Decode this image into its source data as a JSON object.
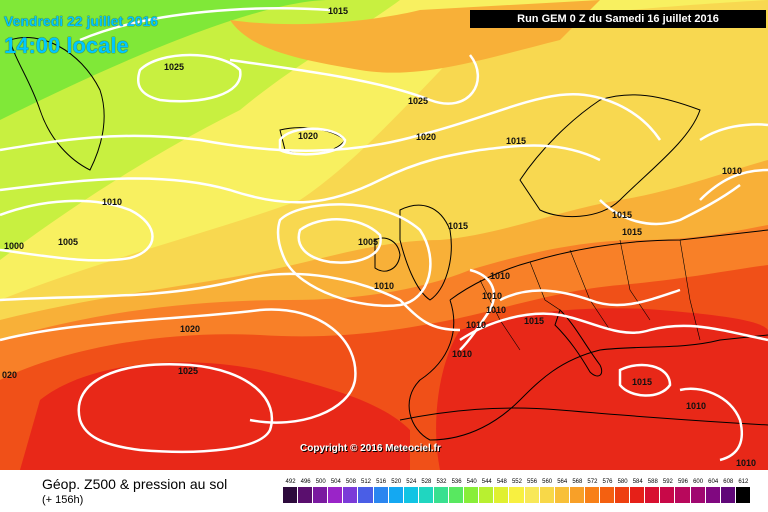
{
  "header": {
    "date": "Vendredi 22 juillet 2016",
    "local_time": "14:00 locale",
    "run_info": "Run GEM 0 Z du Samedi 16 juillet 2016"
  },
  "copyright": "Copyright © 2016 Meteociel.fr",
  "footer": {
    "title": "Géop. Z500 & pression au sol",
    "forecast_hour": "(+ 156h)"
  },
  "legend": {
    "ticks": [
      "492",
      "496",
      "500",
      "504",
      "508",
      "512",
      "516",
      "520",
      "524",
      "528",
      "532",
      "536",
      "540",
      "544",
      "548",
      "552",
      "556",
      "560",
      "564",
      "568",
      "572",
      "576",
      "580",
      "584",
      "588",
      "592",
      "596",
      "600",
      "604",
      "608",
      "612"
    ],
    "colors": [
      "#2d0a3c",
      "#5a0f6e",
      "#7a1aa0",
      "#9a24c8",
      "#7b3ad8",
      "#4a5ee6",
      "#2a86f0",
      "#14a8f2",
      "#10c4e4",
      "#20d6c0",
      "#38e090",
      "#58e860",
      "#88ee38",
      "#b8f030",
      "#e0f030",
      "#f8f040",
      "#f8e858",
      "#f8d848",
      "#f8c038",
      "#f8a028",
      "#f88018",
      "#f46010",
      "#ee4010",
      "#e62018",
      "#d81030",
      "#c80848",
      "#b8085c",
      "#a00870",
      "#800880",
      "#600878",
      "#000000"
    ]
  },
  "isobars": [
    "1015",
    "1025",
    "1025",
    "1020",
    "1020",
    "1015",
    "1010",
    "1010",
    "1005",
    "1000",
    "1005",
    "1015",
    "1015",
    "1010",
    "1015",
    "1010",
    "1010",
    "1010",
    "1010",
    "1015",
    "1020",
    "1025",
    "1015",
    "1010",
    "1010",
    "020",
    "1010"
  ],
  "map": {
    "colors": {
      "green": "#80e838",
      "yellow_green": "#c8f040",
      "yellow": "#f8f060",
      "light_orange": "#f8d850",
      "orange": "#f8b038",
      "dark_orange": "#f88028",
      "red_orange": "#f05018",
      "red": "#e82818",
      "isobar": "#ffffff",
      "border": "#000000"
    }
  }
}
